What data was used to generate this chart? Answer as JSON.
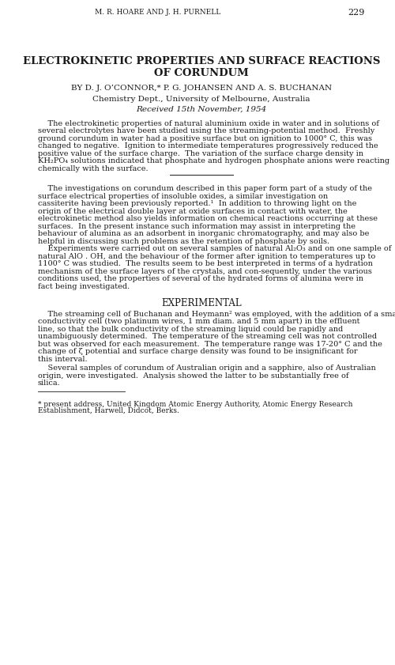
{
  "bg_color": "#ffffff",
  "text_color": "#1a1a1a",
  "header_author": "M. R. HOARE AND J. H. PURNELL",
  "header_page": "229",
  "title_line1": "ELECTROKINETIC PROPERTIES AND SURFACE REACTIONS",
  "title_line2": "OF CORUNDUM",
  "byline": "BY D. J. O’CONNOR,* P. G. JOHANSEN AND A. S. BUCHANAN",
  "affiliation": "Chemistry Dept., University of Melbourne, Australia",
  "received": "Received 15th November, 1954",
  "abstract": "The electrokinetic properties of natural aluminium oxide in water and in solutions of several electrolytes have been studied using the streaming-potential method.  Freshly ground corundum in water had a positive surface but on ignition to 1000° C, this was changed to negative.  Ignition to intermediate temperatures progressively reduced the positive value of the surface charge.  The variation of the surface charge density in KH₂PO₄ solutions indicated that phosphate and hydrogen phosphate anions were reacting chemically with the surface.",
  "para2": "The investigations on corundum described in this paper form part of a study of the surface electrical properties of insoluble oxides, a similar investigation on cassiterite having been previously reported.¹  In addition to throwing light on the origin of the electrical double layer at oxide surfaces in contact with water, the electrokinetic method also yields information on chemical reactions occurring at these surfaces.  In the present instance such information may assist in interpreting the behaviour of alumina as an adsorbent in inorganic chromatography, and may also be helpful in discussing such problems as the retention of phosphate by soils.",
  "para3": "Experiments were carried out on several samples of natural Al₂O₃ and on one sample of natural AlO . OH, and the behaviour of the former after ignition to temperatures up to 1100° C was studied.  The results seem to be best interpreted in terms of a hydration mechanism of the surface layers of the crystals, and con­sequently, under the various conditions used, the properties of several of the hydrated forms of alumina were in fact being investigated.",
  "section_title": "EXPERIMENTAL",
  "para4": "The streaming cell of Buchanan and Heymann² was employed, with the addition of a small conductivity cell (two platinum wires, 1 mm diam. and 5 mm apart) in the effluent line, so that the bulk conductivity of the streaming liquid could be rapidly and unambiguously determined.  The temperature of the streaming cell was not controlled but was observed for each measurement.  The temperature range was 17-20° C and the change of ζ potential and surface charge density was found to be insignificant for this interval.",
  "para5": "Several samples of corundum of Australian origin and a sapphire, also of Australian origin, were investigated.  Analysis showed the latter to be substantially free of silica.",
  "footnote": "* present address, United Kingdom Atomic Energy Authority, Atomic Energy Research Establishment, Harwell, Didcot, Berks."
}
